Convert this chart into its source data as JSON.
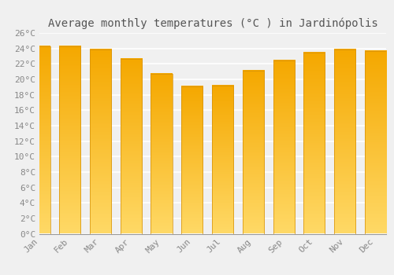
{
  "title": "Average monthly temperatures (°C ) in Jardinópolis",
  "months": [
    "Jan",
    "Feb",
    "Mar",
    "Apr",
    "May",
    "Jun",
    "Jul",
    "Aug",
    "Sep",
    "Oct",
    "Nov",
    "Dec"
  ],
  "values": [
    24.3,
    24.3,
    23.9,
    22.6,
    20.7,
    19.1,
    19.2,
    21.1,
    22.4,
    23.5,
    23.9,
    23.7
  ],
  "bar_color_top": "#F5A800",
  "bar_color_mid": "#FDBC00",
  "bar_color_bottom": "#FFD966",
  "bar_edge_color": "#D4900A",
  "ylim": [
    0,
    26
  ],
  "yticks": [
    0,
    2,
    4,
    6,
    8,
    10,
    12,
    14,
    16,
    18,
    20,
    22,
    24,
    26
  ],
  "ytick_labels": [
    "0°C",
    "2°C",
    "4°C",
    "6°C",
    "8°C",
    "10°C",
    "12°C",
    "14°C",
    "16°C",
    "18°C",
    "20°C",
    "22°C",
    "24°C",
    "26°C"
  ],
  "background_color": "#f0f0f0",
  "plot_bg_color": "#f0f0f0",
  "grid_color": "#ffffff",
  "title_fontsize": 10,
  "tick_fontsize": 8,
  "font_family": "monospace",
  "tick_color": "#888888",
  "title_color": "#555555"
}
